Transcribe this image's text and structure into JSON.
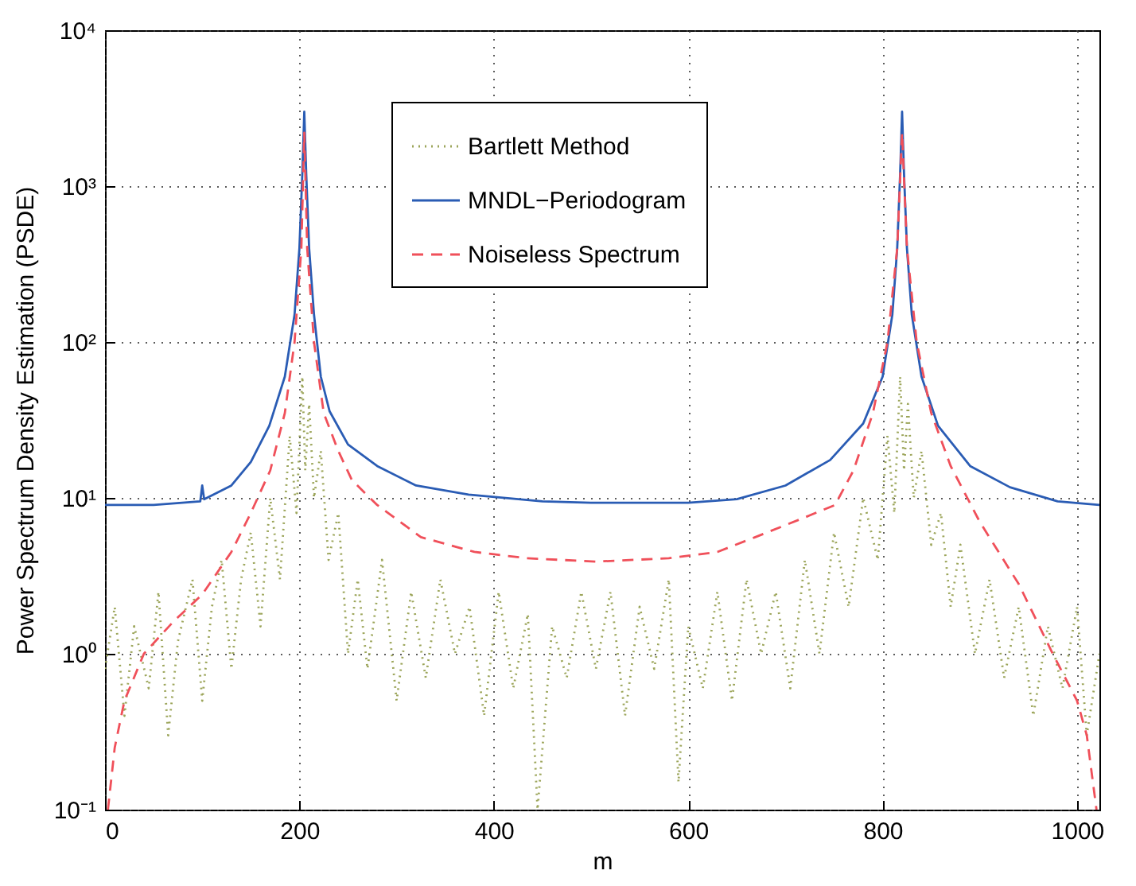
{
  "chart_data": {
    "type": "line",
    "xlabel": "m",
    "ylabel": "Power Spectrum Density Estimation (PSDE)",
    "log": "y",
    "grid": true,
    "legend": "top",
    "xlim": [
      0,
      1023
    ],
    "xticks": [
      0,
      200,
      400,
      600,
      800,
      1000
    ],
    "ylim": [
      0.1,
      10000
    ],
    "yticks": [
      {
        "value": 0.1,
        "label": "10⁻¹"
      },
      {
        "value": 1,
        "label": "10⁰"
      },
      {
        "value": 10,
        "label": "10¹"
      },
      {
        "value": 100,
        "label": "10²"
      },
      {
        "value": 1000,
        "label": "10³"
      },
      {
        "value": 10000,
        "label": "10⁴"
      }
    ],
    "series": [
      {
        "name": "Bartlett Method",
        "color": "#9ca55a",
        "line_style": "dotted",
        "x": [
          0,
          10,
          20,
          30,
          45,
          55,
          65,
          75,
          90,
          100,
          110,
          120,
          130,
          140,
          150,
          160,
          170,
          180,
          190,
          197,
          203,
          206,
          210,
          215,
          222,
          230,
          240,
          250,
          260,
          270,
          285,
          300,
          315,
          330,
          345,
          360,
          375,
          390,
          405,
          420,
          435,
          445,
          460,
          475,
          490,
          505,
          520,
          535,
          550,
          565,
          580,
          590,
          600,
          615,
          630,
          645,
          660,
          675,
          690,
          705,
          720,
          735,
          750,
          765,
          780,
          795,
          805,
          812,
          818,
          822,
          826,
          832,
          840,
          850,
          860,
          870,
          880,
          895,
          910,
          925,
          940,
          955,
          970,
          985,
          1000,
          1010,
          1023
        ],
        "values": [
          0.8,
          2,
          0.4,
          1.5,
          0.6,
          2.5,
          0.3,
          1.2,
          3,
          0.5,
          2,
          4,
          0.8,
          3,
          6,
          1.5,
          10,
          3,
          25,
          8,
          60,
          15,
          40,
          10,
          20,
          4,
          8,
          1,
          3,
          0.8,
          4,
          0.5,
          2.5,
          0.7,
          3,
          1,
          2,
          0.4,
          2.5,
          0.6,
          1.8,
          0.1,
          1.5,
          0.7,
          2.5,
          0.8,
          2.5,
          0.4,
          2,
          0.8,
          3,
          0.15,
          1.5,
          0.6,
          2.5,
          0.5,
          3,
          1,
          2.5,
          0.6,
          4,
          1,
          6,
          2,
          10,
          4,
          25,
          8,
          60,
          15,
          40,
          10,
          20,
          5,
          8,
          2,
          5,
          1,
          3,
          0.7,
          2,
          0.4,
          1.5,
          0.6,
          2,
          0.3,
          1
        ]
      },
      {
        "name": "MNDL−Periodogram",
        "color": "#2a5cb4",
        "line_style": "solid",
        "x": [
          0,
          50,
          98,
          100,
          102,
          130,
          150,
          169,
          185,
          195,
          200,
          203,
          205,
          207,
          210,
          215,
          222,
          231,
          250,
          280,
          320,
          374,
          450,
          500,
          600,
          650,
          700,
          746,
          780,
          800,
          810,
          815,
          818,
          820,
          822,
          825,
          830,
          840,
          857,
          890,
          931,
          980,
          1023
        ],
        "values": [
          9,
          9,
          9.5,
          12,
          9.8,
          12,
          17,
          29,
          60,
          150,
          400,
          1200,
          3000,
          1200,
          400,
          150,
          60,
          36,
          22,
          16,
          12,
          10.5,
          9.5,
          9.3,
          9.3,
          9.8,
          12,
          17.5,
          30,
          60,
          150,
          400,
          1200,
          3000,
          1200,
          400,
          150,
          60,
          29,
          16,
          11.7,
          9.5,
          9
        ]
      },
      {
        "name": "Noiseless Spectrum",
        "color": "#f0505a",
        "line_style": "dashed",
        "x": [
          3,
          10,
          20,
          40,
          70,
          100,
          130,
          150,
          170,
          185,
          195,
          202,
          205,
          208,
          215,
          225,
          240,
          254,
          280,
          325,
          380,
          434,
          505,
          580,
          630,
          669,
          720,
          751,
          770,
          790,
          805,
          815,
          820,
          825,
          835,
          850,
          870,
          900,
          940,
          975,
          1000,
          1010,
          1020
        ],
        "values": [
          0.1,
          0.25,
          0.5,
          1,
          1.6,
          2.4,
          4.5,
          8,
          15,
          35,
          100,
          400,
          2200,
          400,
          100,
          35,
          20,
          13,
          9,
          5.6,
          4.5,
          4.1,
          3.9,
          4.1,
          4.5,
          5.6,
          7.5,
          9,
          15,
          35,
          100,
          400,
          2200,
          400,
          100,
          35,
          16,
          7,
          2.8,
          1,
          0.5,
          0.3,
          0.1
        ]
      }
    ]
  }
}
